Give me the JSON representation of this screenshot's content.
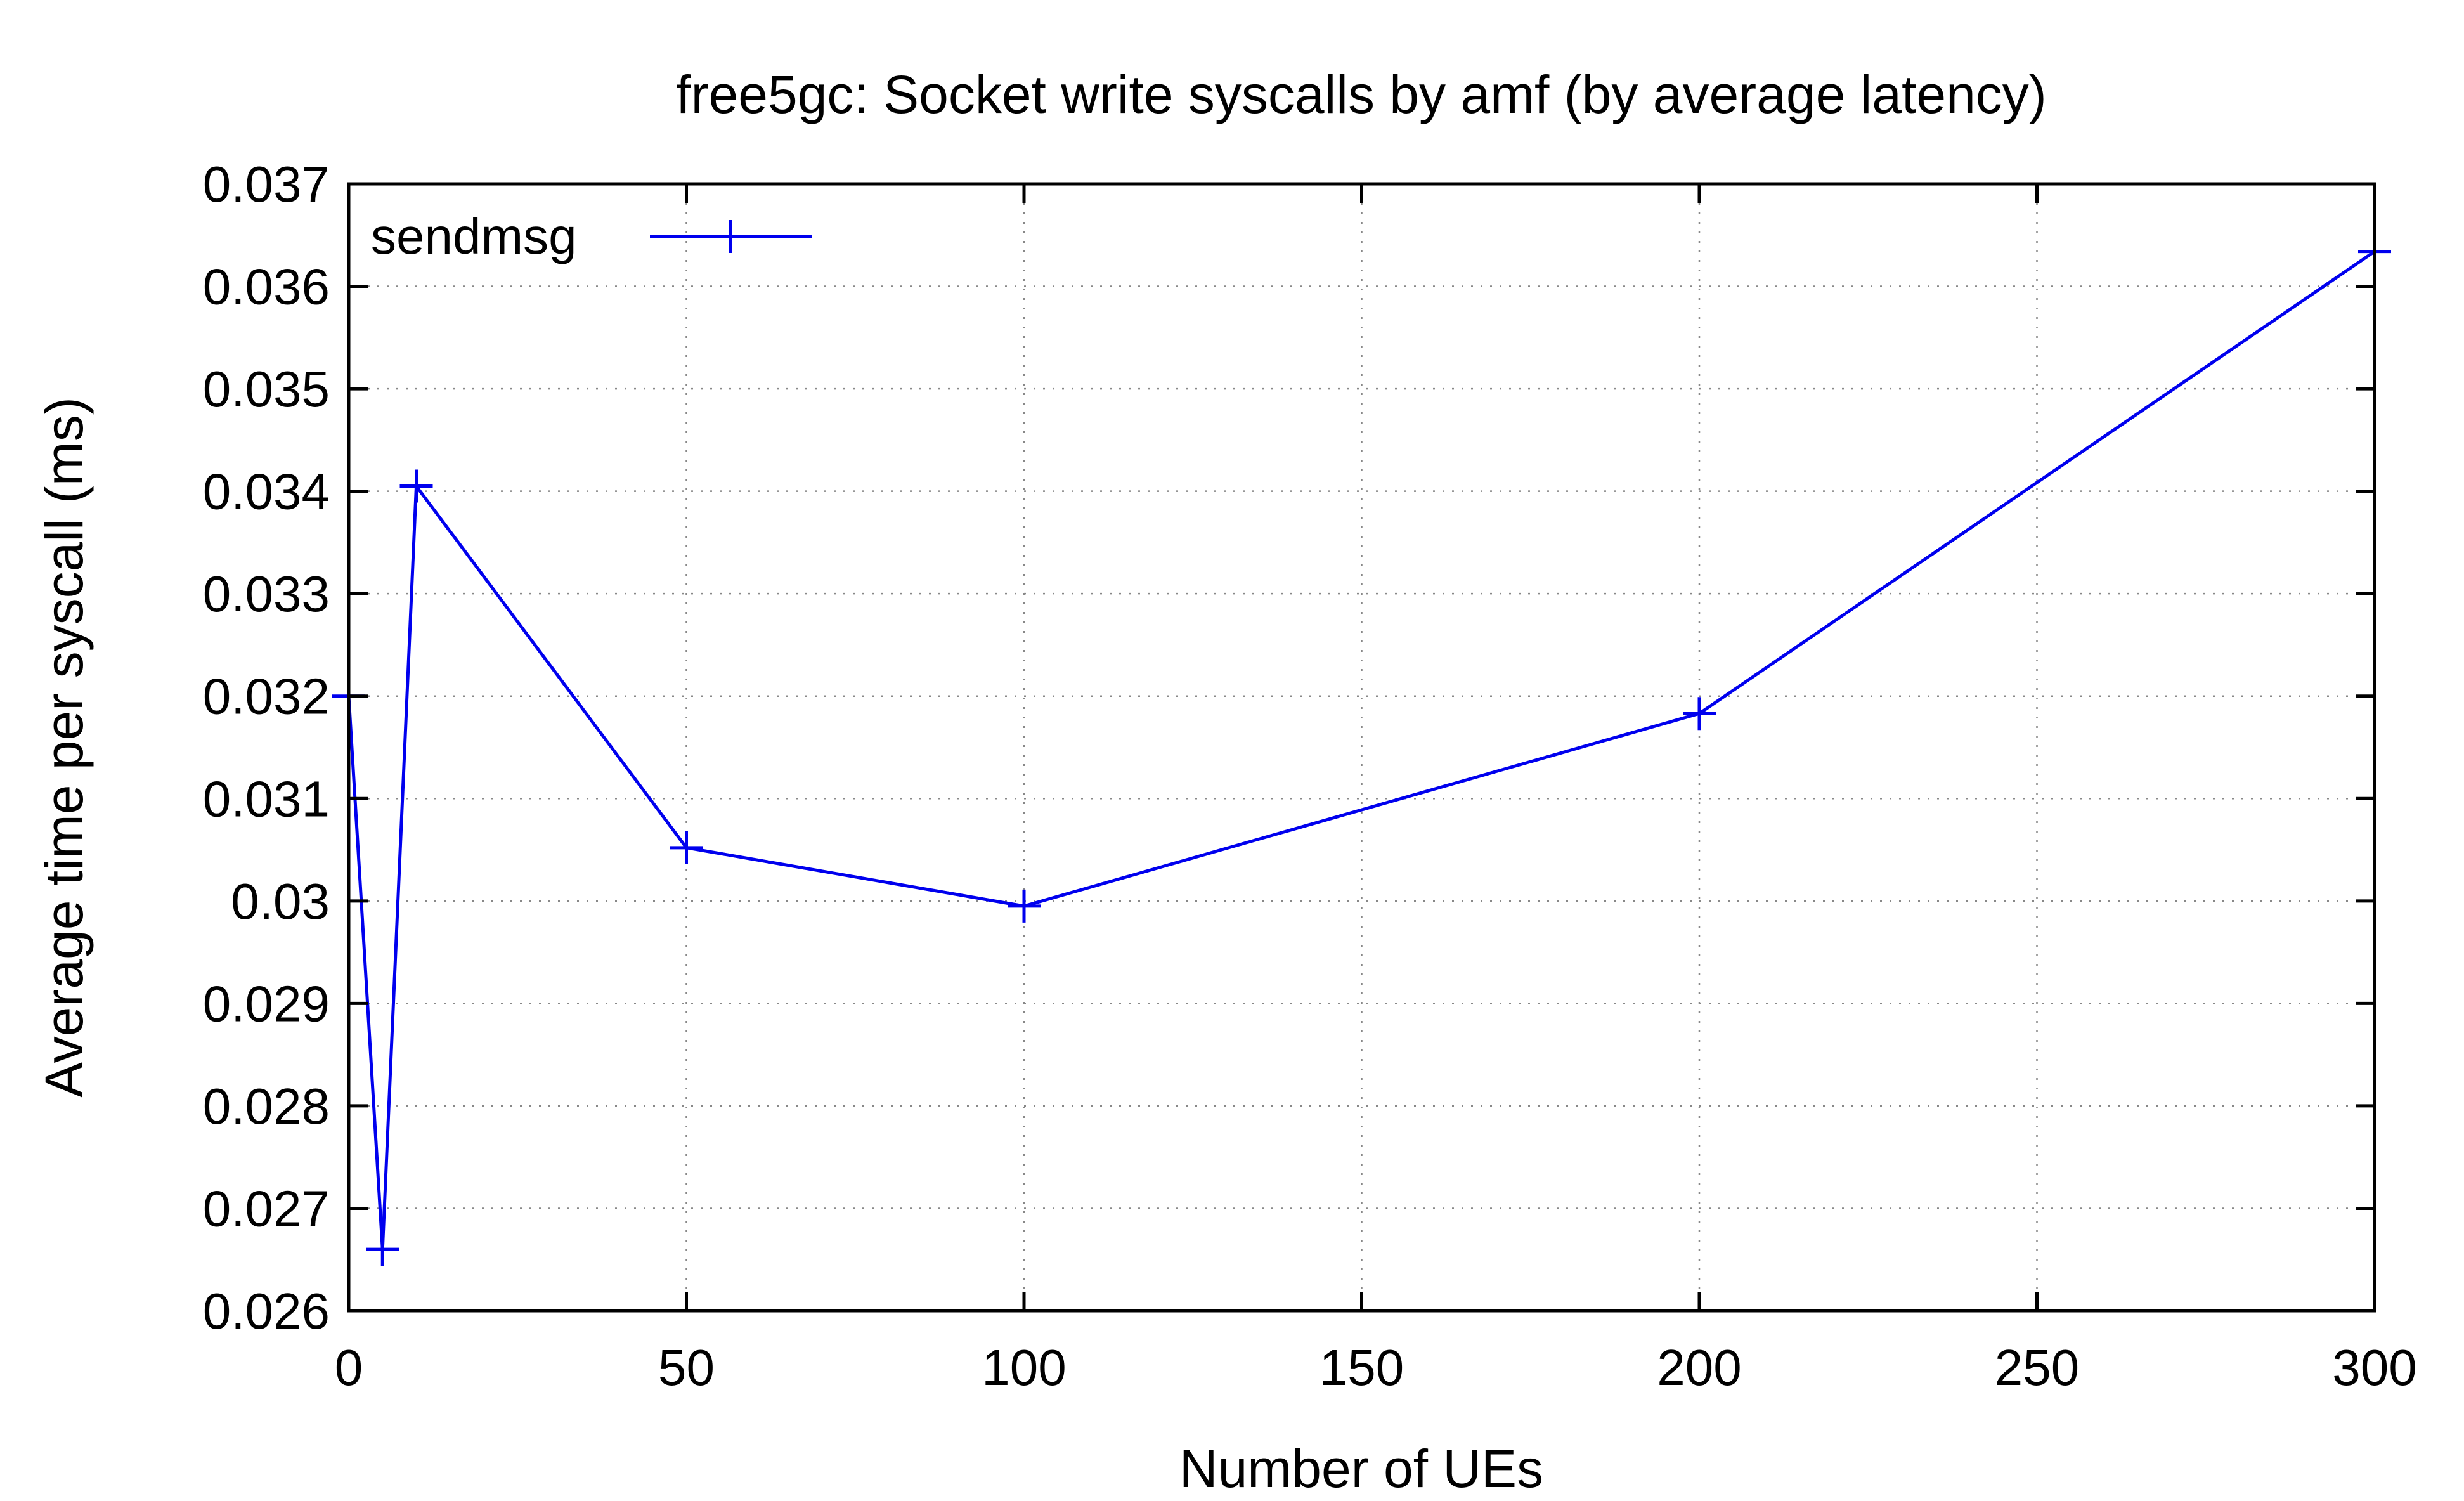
{
  "chart_data": {
    "type": "line",
    "title": "free5gc: Socket write syscalls by amf (by average latency)",
    "xlabel": "Number of UEs",
    "ylabel": "Average time per syscall (ms)",
    "xlim": [
      0,
      300
    ],
    "ylim": [
      0.026,
      0.037
    ],
    "xticks": [
      0,
      50,
      100,
      150,
      200,
      250,
      300
    ],
    "xtick_labels": [
      "0",
      "50",
      "100",
      "150",
      "200",
      "250",
      "300"
    ],
    "yticks": [
      0.026,
      0.027,
      0.028,
      0.029,
      0.03,
      0.031,
      0.032,
      0.033,
      0.034,
      0.035,
      0.036,
      0.037
    ],
    "ytick_labels": [
      "0.026",
      "0.027",
      "0.028",
      "0.029",
      "0.03",
      "0.031",
      "0.032",
      "0.033",
      "0.034",
      "0.035",
      "0.036",
      "0.037"
    ],
    "grid": true,
    "legend": "top-left",
    "series": [
      {
        "name": "sendmsg",
        "color": "#0000ee",
        "marker": "plus",
        "x": [
          0,
          5,
          10,
          50,
          100,
          200,
          300
        ],
        "y": [
          0.032,
          0.0266,
          0.03405,
          0.03052,
          0.02995,
          0.03183,
          0.03634
        ]
      }
    ]
  }
}
